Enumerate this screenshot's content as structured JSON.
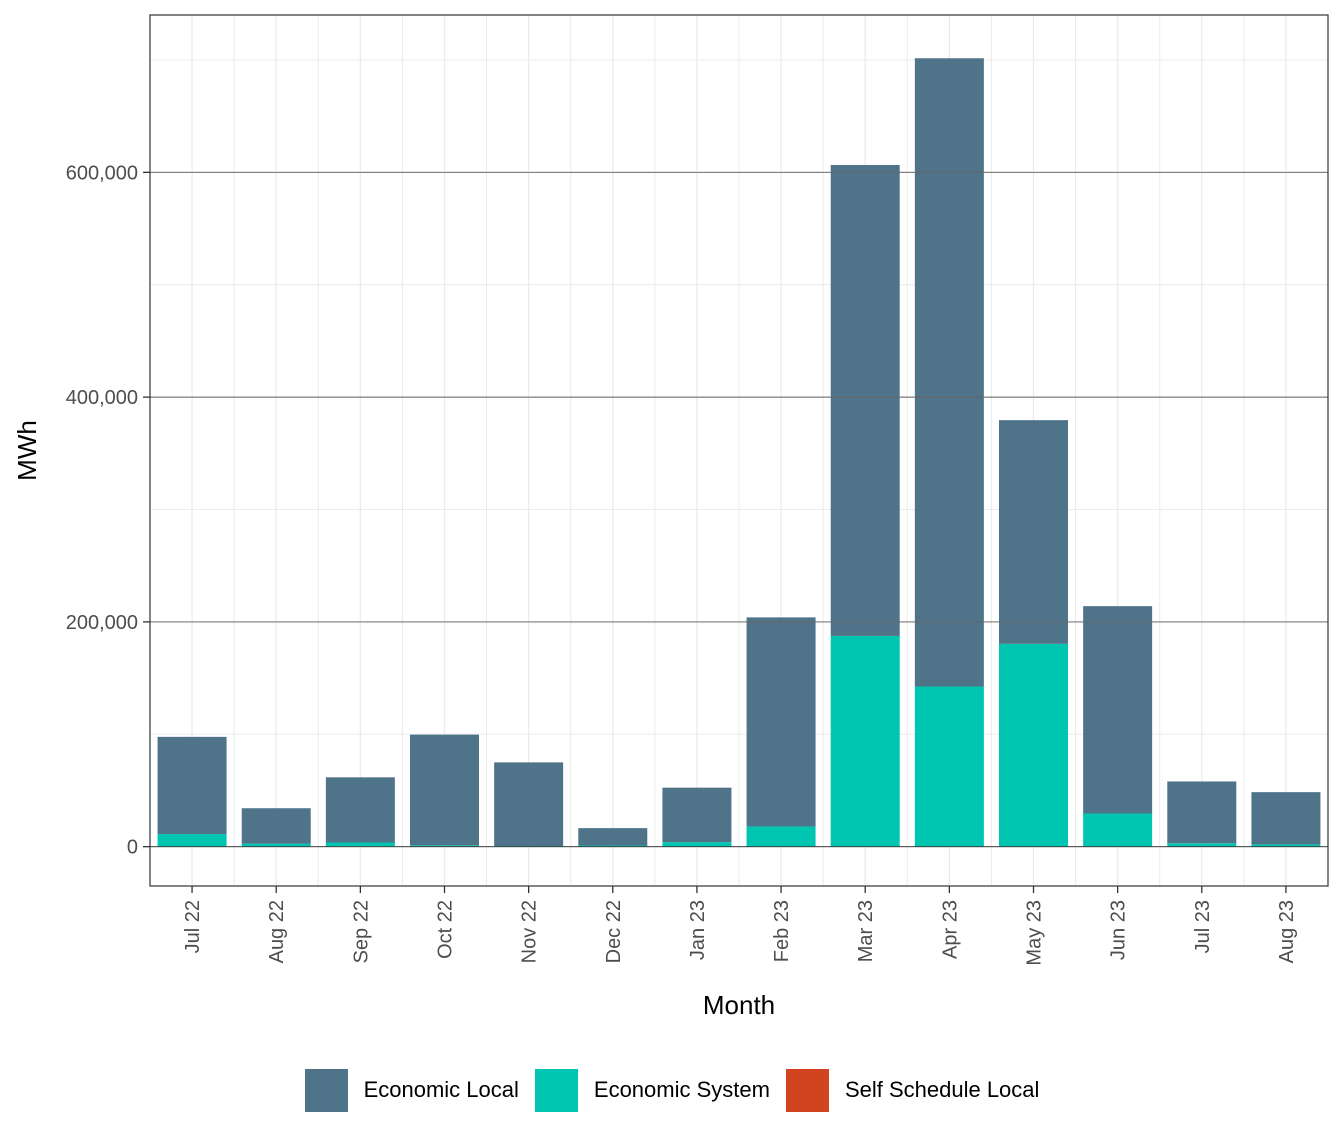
{
  "chart_data": {
    "type": "bar",
    "stacked": true,
    "xlabel": "Month",
    "ylabel": "MWh",
    "categories": [
      "Jul 22",
      "Aug 22",
      "Sep 22",
      "Oct 22",
      "Nov 22",
      "Dec 22",
      "Jan 23",
      "Feb 23",
      "Mar 23",
      "Apr 23",
      "May 23",
      "Jun 23",
      "Jul 23",
      "Aug 23"
    ],
    "ylim": [
      -35000,
      740000
    ],
    "yticks": [
      0,
      200000,
      400000,
      600000
    ],
    "ytick_labels": [
      "0",
      "200,000",
      "400,000",
      "600,000"
    ],
    "grid": true,
    "legend_position": "bottom",
    "series": [
      {
        "name": "Self Schedule Local",
        "color": "#D2441F",
        "values": [
          200,
          200,
          200,
          200,
          0,
          0,
          0,
          0,
          0,
          0,
          0,
          0,
          0,
          0
        ]
      },
      {
        "name": "Economic System",
        "color": "#00C5B0",
        "values": [
          11000,
          2500,
          3500,
          1000,
          500,
          1000,
          4000,
          18000,
          187500,
          142500,
          180500,
          29500,
          3000,
          2000
        ]
      },
      {
        "name": "Economic Local",
        "color": "#4F7389",
        "values": [
          86500,
          31500,
          58000,
          98500,
          74500,
          15500,
          48500,
          186000,
          419000,
          559000,
          199000,
          184500,
          55000,
          46500
        ]
      }
    ],
    "legend_order": [
      "Economic Local",
      "Economic System",
      "Self Schedule Local"
    ]
  }
}
